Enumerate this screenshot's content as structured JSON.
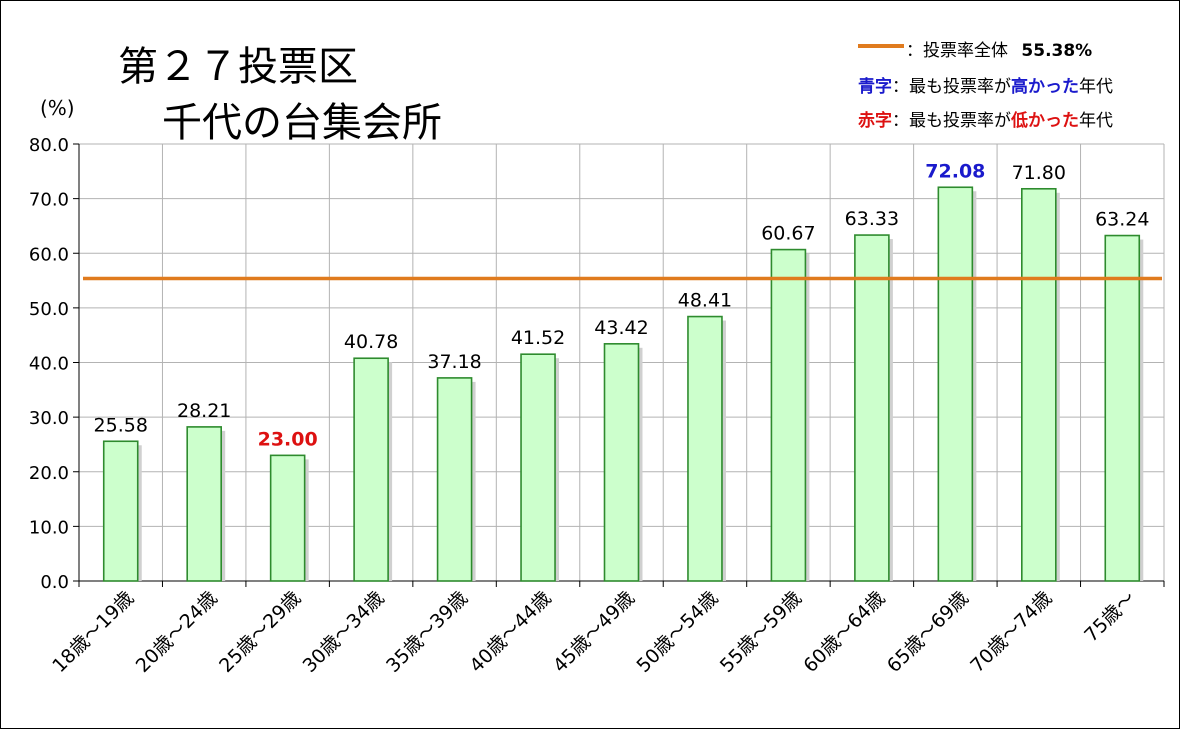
{
  "title": [
    "第２７投票区",
    "千代の台集会所"
  ],
  "unit_label": "(%)",
  "legend": {
    "line_color": "#e07b1e",
    "overall_label": "：投票率全体",
    "overall_value": "55.38%",
    "blue_key": "青字",
    "blue_mid": "：最も投票率が",
    "blue_hl": "高かった",
    "blue_tail": "年代",
    "red_key": "赤字",
    "red_mid": "：最も投票率が",
    "red_hl": "低かった",
    "red_tail": "年代"
  },
  "colors": {
    "bar_fill": "#ccffcc",
    "bar_stroke": "#2e8b2e",
    "highest": "#1a1acc",
    "lowest": "#dd1111",
    "reference_line": "#e07b1e",
    "grid": "#b3b3b3"
  },
  "chart_data": {
    "type": "bar",
    "categories": [
      "18歳～19歳",
      "20歳～24歳",
      "25歳～29歳",
      "30歳～34歳",
      "35歳～39歳",
      "40歳～44歳",
      "45歳～49歳",
      "50歳～54歳",
      "55歳～59歳",
      "60歳～64歳",
      "65歳～69歳",
      "70歳～74歳",
      "75歳～"
    ],
    "values": [
      25.58,
      28.21,
      23.0,
      40.78,
      37.18,
      41.52,
      43.42,
      48.41,
      60.67,
      63.33,
      72.08,
      71.8,
      63.24
    ],
    "value_labels": [
      "25.58",
      "28.21",
      "23.00",
      "40.78",
      "37.18",
      "41.52",
      "43.42",
      "48.41",
      "60.67",
      "63.33",
      "72.08",
      "71.80",
      "63.24"
    ],
    "highest_index": 10,
    "lowest_index": 2,
    "reference_value": 55.38,
    "ylim": [
      0,
      80
    ],
    "yticks": [
      "0.0",
      "10.0",
      "20.0",
      "30.0",
      "40.0",
      "50.0",
      "60.0",
      "70.0",
      "80.0"
    ],
    "grid": true,
    "legend_position": "top-right"
  }
}
